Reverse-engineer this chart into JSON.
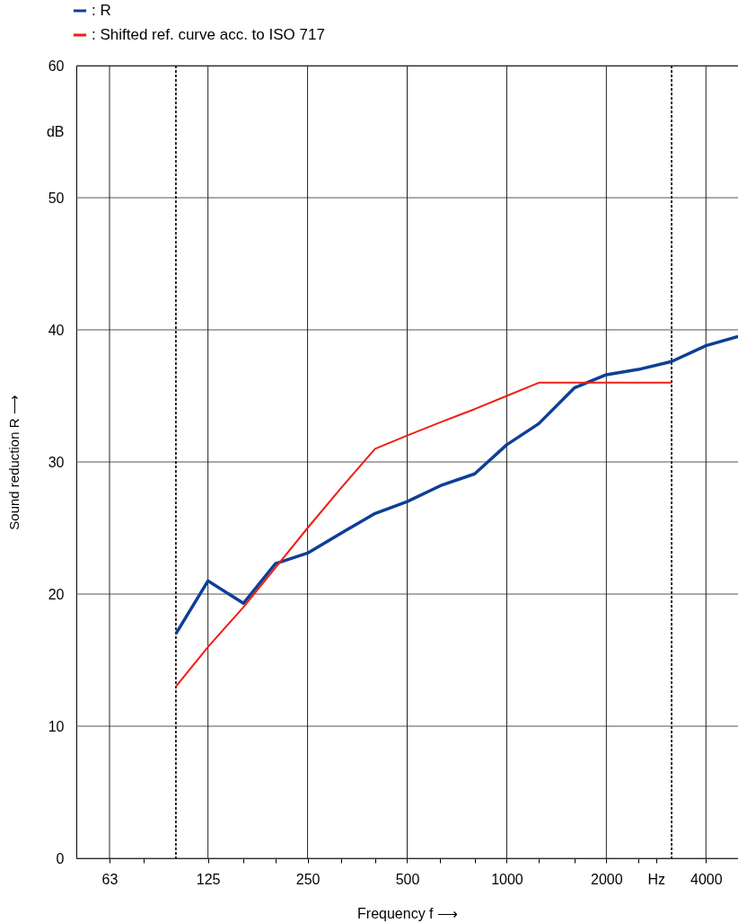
{
  "chart_data": {
    "type": "line",
    "xlabel": "Frequency f ⟶",
    "ylabel": "Sound reduction R ⟶",
    "legend": "top left",
    "grid": true,
    "log": "x",
    "line_style": "solid",
    "marker": "none",
    "xlim": [
      50,
      5000
    ],
    "ylim": [
      0,
      60
    ],
    "xticks": [
      63,
      {
        "value": 80,
        "label": null
      },
      125,
      {
        "value": 160,
        "label": null
      },
      {
        "value": 200,
        "label": null
      },
      250,
      {
        "value": 315,
        "label": null
      },
      {
        "value": 400,
        "label": null
      },
      500,
      {
        "value": 630,
        "label": null
      },
      {
        "value": 800,
        "label": null
      },
      1000,
      {
        "value": 1250,
        "label": null
      },
      {
        "value": 1600,
        "label": null
      },
      2000,
      {
        "value": 2500,
        "label": null
      },
      {
        "value": 2828,
        "label": "Hz"
      },
      4000
    ],
    "yticks": [
      0,
      10,
      20,
      30,
      40,
      50,
      {
        "value": 55,
        "label": "dB"
      },
      60
    ],
    "ref_lines": [
      {
        "axis": "x",
        "value": 100,
        "label": null,
        "color": "#000000",
        "line_style": "dotted"
      },
      {
        "axis": "x",
        "value": 3150,
        "label": null,
        "color": "#000000",
        "line_style": "dotted"
      }
    ],
    "series": [
      {
        "name": ": R",
        "color": "#0d3f96",
        "x": [
          100,
          125,
          160,
          200,
          250,
          315,
          400,
          500,
          630,
          800,
          1000,
          1250,
          1600,
          2000,
          2500,
          3150,
          4000,
          5000
        ],
        "values": [
          17,
          21,
          19.3,
          22.3,
          23.1,
          24.6,
          26.1,
          27,
          28.2,
          29.1,
          31.3,
          32.9,
          35.6,
          36.6,
          37,
          37.6,
          38.8,
          39.5
        ]
      },
      {
        "name": ": Shifted ref. curve acc. to ISO 717",
        "color": "#f01e14",
        "x": [
          100,
          125,
          160,
          200,
          250,
          315,
          400,
          500,
          630,
          800,
          1000,
          1250,
          1600,
          2000,
          2500,
          3150
        ],
        "values": [
          13,
          16,
          19,
          22,
          25,
          28,
          31,
          32,
          33,
          34,
          35,
          36,
          36,
          36,
          36,
          36
        ]
      }
    ]
  }
}
